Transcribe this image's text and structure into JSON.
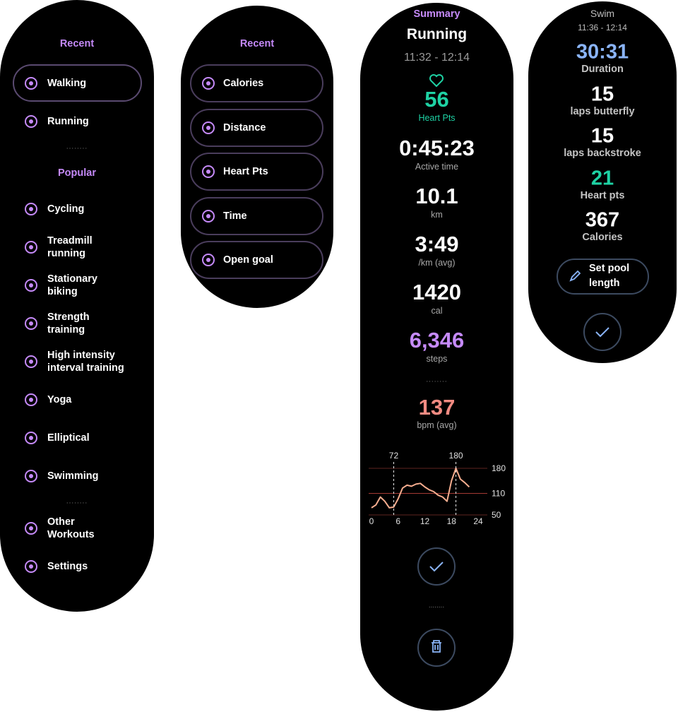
{
  "activity_list": {
    "recent_title": "Recent",
    "recent": [
      "Walking",
      "Running"
    ],
    "popular_title": "Popular",
    "popular": [
      "Cycling",
      "Treadmill\nrunning",
      "Stationary\nbiking",
      "Strength\ntraining",
      "High intensity\ninterval training",
      "Yoga",
      "Elliptical",
      "Swimming"
    ],
    "more": [
      "Other\nWorkouts",
      "Settings"
    ]
  },
  "goal_list": {
    "title": "Recent",
    "goals": [
      "Calories",
      "Distance",
      "Heart Pts",
      "Time",
      "Open goal"
    ]
  },
  "summary": {
    "label": "Summary",
    "activity": "Running",
    "time_range": "11:32 - 12:14",
    "stats": [
      {
        "value": "56",
        "label": "Heart Pts",
        "color": "#1ed2a4",
        "label_color": "#1ed2a4"
      },
      {
        "value": "0:45:23",
        "label": "Active time",
        "color": "#ffffff"
      },
      {
        "value": "10.1",
        "label": "km",
        "color": "#ffffff"
      },
      {
        "value": "3:49",
        "label": "/km (avg)",
        "color": "#ffffff"
      },
      {
        "value": "1420",
        "label": "cal",
        "color": "#ffffff"
      },
      {
        "value": "6,346",
        "label": "steps",
        "color": "#c58af9"
      }
    ],
    "bpm": {
      "value": "137",
      "label": "bpm (avg)",
      "color": "#f28b82"
    },
    "chart": {
      "type": "line",
      "x": [
        0,
        1,
        2,
        3,
        4,
        5,
        6,
        7,
        8,
        9,
        10,
        11,
        12,
        13,
        14,
        15,
        16,
        17,
        18,
        19,
        20,
        21,
        22
      ],
      "values": [
        70,
        78,
        100,
        88,
        70,
        72,
        95,
        125,
        133,
        130,
        136,
        138,
        128,
        120,
        115,
        105,
        100,
        88,
        145,
        180,
        150,
        140,
        128
      ],
      "color": "#f6ad8f",
      "xlim": [
        0,
        24
      ],
      "xticks": [
        0,
        6,
        12,
        18,
        24
      ],
      "ylim": [
        50,
        180
      ],
      "yticks": [
        50,
        110,
        180
      ],
      "annotations": [
        {
          "x": 5,
          "y": 72
        },
        {
          "x": 19,
          "y": 180
        }
      ]
    }
  },
  "swim": {
    "activity": "Swim",
    "time_range": "11:36 - 12:14",
    "stats": [
      {
        "value": "30:31",
        "label": "Duration",
        "color": "#8ab4f8"
      },
      {
        "value": "15",
        "label": "laps butterfly",
        "color": "#ffffff"
      },
      {
        "value": "15",
        "label": "laps backstroke",
        "color": "#ffffff"
      },
      {
        "value": "21",
        "label": "Heart pts",
        "color": "#1ed2a4"
      },
      {
        "value": "367",
        "label": "Calories",
        "color": "#ffffff"
      }
    ],
    "button": "Set pool\nlength"
  }
}
